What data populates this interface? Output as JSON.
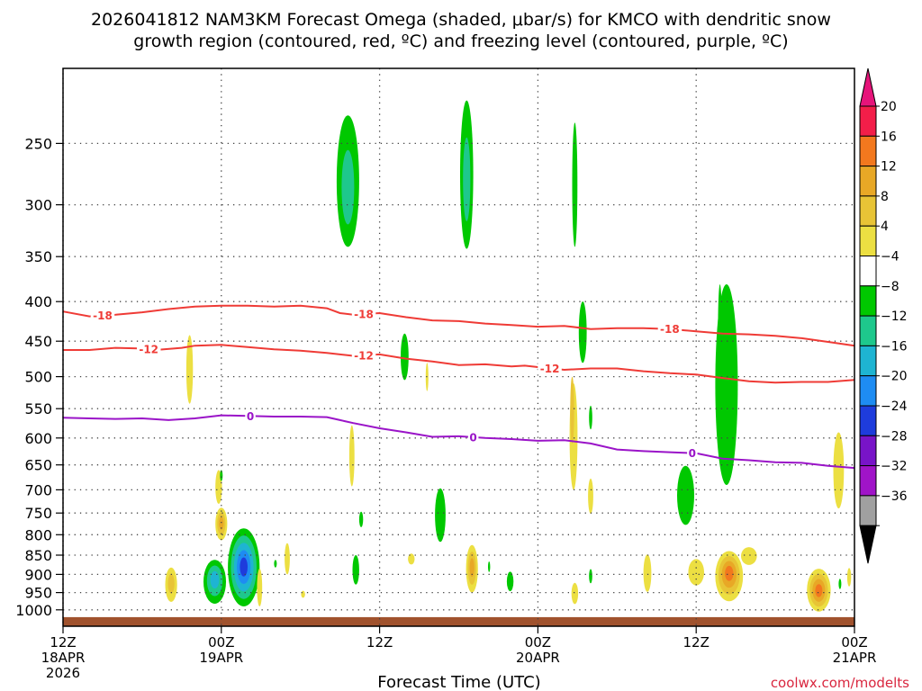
{
  "chart_data": {
    "type": "heatmap",
    "title_line1": "2026041812 NAM3KM Forecast Omega (shaded, μbar/s) for KMCO with dendritic snow",
    "title_line2": "growth region (contoured, red, ºC) and freezing level (contoured, purple, ºC)",
    "xlabel": "Forecast Time (UTC)",
    "credit": "coolwx.com/modelts",
    "x_range_hours": [
      0,
      60
    ],
    "x_ticks": [
      {
        "h": 0,
        "l1": "12Z",
        "l2": "18APR",
        "l3": "2026"
      },
      {
        "h": 12,
        "l1": "00Z",
        "l2": "19APR",
        "l3": ""
      },
      {
        "h": 24,
        "l1": "12Z",
        "l2": "",
        "l3": ""
      },
      {
        "h": 36,
        "l1": "00Z",
        "l2": "20APR",
        "l3": ""
      },
      {
        "h": 48,
        "l1": "12Z",
        "l2": "",
        "l3": ""
      },
      {
        "h": 60,
        "l1": "00Z",
        "l2": "21APR",
        "l3": ""
      }
    ],
    "y_scale": "log-pressure",
    "y_range_hpa": [
      1050,
      200
    ],
    "y_ticks": [
      250,
      300,
      350,
      400,
      450,
      500,
      550,
      600,
      650,
      700,
      750,
      800,
      850,
      900,
      950,
      1000
    ],
    "grid": true,
    "colorbar": {
      "labels": [
        "20",
        "16",
        "12",
        "8",
        "4",
        "−4",
        "−8",
        "−12",
        "−16",
        "−20",
        "−24",
        "−28",
        "−32",
        "−36"
      ],
      "colors": [
        "#f21e49",
        "#f2781e",
        "#e8a826",
        "#e8c436",
        "#ecdf42",
        "#ffffff",
        "#00c800",
        "#1ec88c",
        "#1eb4d2",
        "#1e8cf2",
        "#1e3cdc",
        "#7814c8",
        "#a014c8",
        "#a0a0a0"
      ],
      "top_arrow_color": "#e6147a",
      "bottom_arrow_color": "#000000"
    },
    "contour_series": [
      {
        "label": "-18",
        "color": "#ef3b36",
        "points": [
          [
            0,
            412
          ],
          [
            2,
            418
          ],
          [
            4,
            416
          ],
          [
            6,
            413
          ],
          [
            8,
            409
          ],
          [
            10,
            406
          ],
          [
            12,
            405
          ],
          [
            14,
            405
          ],
          [
            16,
            406
          ],
          [
            18,
            405
          ],
          [
            20,
            408
          ],
          [
            21,
            414
          ],
          [
            22,
            416
          ],
          [
            24,
            414
          ],
          [
            26,
            419
          ],
          [
            28,
            423
          ],
          [
            30,
            424
          ],
          [
            32,
            427
          ],
          [
            34,
            429
          ],
          [
            36,
            431
          ],
          [
            38,
            430
          ],
          [
            40,
            434
          ],
          [
            42,
            433
          ],
          [
            44,
            433
          ],
          [
            46,
            434
          ],
          [
            48,
            437
          ],
          [
            50,
            440
          ],
          [
            52,
            441
          ],
          [
            54,
            443
          ],
          [
            56,
            446
          ],
          [
            58,
            451
          ],
          [
            60,
            456
          ]
        ],
        "label_positions": [
          3,
          22.8,
          46
        ]
      },
      {
        "label": "-12",
        "color": "#ef3b36",
        "points": [
          [
            0,
            462
          ],
          [
            2,
            462
          ],
          [
            4,
            459
          ],
          [
            6,
            460
          ],
          [
            7,
            462
          ],
          [
            9,
            459
          ],
          [
            10,
            456
          ],
          [
            12,
            455
          ],
          [
            14,
            458
          ],
          [
            16,
            461
          ],
          [
            18,
            463
          ],
          [
            20,
            466
          ],
          [
            22,
            470
          ],
          [
            24,
            468
          ],
          [
            26,
            474
          ],
          [
            28,
            478
          ],
          [
            30,
            483
          ],
          [
            32,
            482
          ],
          [
            34,
            485
          ],
          [
            35,
            484
          ],
          [
            36,
            486
          ],
          [
            38,
            490
          ],
          [
            40,
            488
          ],
          [
            42,
            488
          ],
          [
            44,
            492
          ],
          [
            46,
            495
          ],
          [
            48,
            497
          ],
          [
            50,
            502
          ],
          [
            52,
            507
          ],
          [
            54,
            509
          ],
          [
            56,
            508
          ],
          [
            58,
            508
          ],
          [
            60,
            505
          ]
        ],
        "label_positions": [
          6.5,
          22.8,
          36.9
        ]
      },
      {
        "label": "0",
        "color": "#9a14c8",
        "points": [
          [
            0,
            565
          ],
          [
            2,
            566
          ],
          [
            4,
            567
          ],
          [
            6,
            566
          ],
          [
            8,
            569
          ],
          [
            10,
            566
          ],
          [
            12,
            561
          ],
          [
            14,
            562
          ],
          [
            16,
            563
          ],
          [
            18,
            563
          ],
          [
            20,
            564
          ],
          [
            21,
            569
          ],
          [
            22,
            574
          ],
          [
            24,
            583
          ],
          [
            26,
            590
          ],
          [
            28,
            598
          ],
          [
            30,
            597
          ],
          [
            32,
            600
          ],
          [
            34,
            602
          ],
          [
            36,
            605
          ],
          [
            38,
            604
          ],
          [
            40,
            610
          ],
          [
            42,
            621
          ],
          [
            44,
            624
          ],
          [
            46,
            626
          ],
          [
            48,
            628
          ],
          [
            50,
            638
          ],
          [
            52,
            641
          ],
          [
            54,
            645
          ],
          [
            56,
            646
          ],
          [
            58,
            652
          ],
          [
            60,
            656
          ]
        ],
        "label_positions": [
          14.2,
          31.1,
          47.7
        ]
      }
    ],
    "omega_blobs": [
      {
        "h": 9.6,
        "p": 472,
        "w": 0.5,
        "dp": [
          -30,
          70
        ],
        "layers": [
          "#ecdf42"
        ]
      },
      {
        "h": 11.8,
        "p": 690,
        "w": 0.5,
        "dp": [
          -30,
          40
        ],
        "layers": [
          "#ecdf42"
        ]
      },
      {
        "h": 12.0,
        "p": 773,
        "w": 0.9,
        "dp": [
          -35,
          40
        ],
        "layers": [
          "#ecdf42",
          "#e8c436",
          "#e8a826"
        ]
      },
      {
        "h": 8.2,
        "p": 922,
        "w": 0.9,
        "dp": [
          -40,
          55
        ],
        "layers": [
          "#ecdf42",
          "#e8c436"
        ]
      },
      {
        "h": 12.0,
        "p": 670,
        "w": 0.2,
        "dp": [
          -10,
          12
        ],
        "layers": [
          "#00c800"
        ]
      },
      {
        "h": 13.7,
        "p": 880,
        "w": 2.4,
        "dp": [
          -95,
          110
        ],
        "layers": [
          "#00c800",
          "#1ec88c",
          "#1eb4d2",
          "#1e8cf2",
          "#1e3cdc"
        ]
      },
      {
        "h": 11.5,
        "p": 912,
        "w": 1.7,
        "dp": [
          -50,
          70
        ],
        "layers": [
          "#00c800",
          "#1ec88c",
          "#1eb4d2"
        ]
      },
      {
        "h": 14.9,
        "p": 930,
        "w": 0.4,
        "dp": [
          -45,
          60
        ],
        "layers": [
          "#ecdf42"
        ]
      },
      {
        "h": 17.0,
        "p": 860,
        "w": 0.4,
        "dp": [
          -40,
          40
        ],
        "layers": [
          "#ecdf42"
        ]
      },
      {
        "h": 18.2,
        "p": 955,
        "w": 0.3,
        "dp": [
          -10,
          10
        ],
        "layers": [
          "#ecdf42"
        ]
      },
      {
        "h": 16.1,
        "p": 872,
        "w": 0.2,
        "dp": [
          -10,
          10
        ],
        "layers": [
          "#00c800"
        ]
      },
      {
        "h": 21.6,
        "p": 290,
        "w": 1.7,
        "dp": [
          -60,
          50
        ],
        "layers": [
          "#00c800",
          "#1ec88c"
        ]
      },
      {
        "h": 21.9,
        "p": 628,
        "w": 0.4,
        "dp": [
          -50,
          65
        ],
        "layers": [
          "#ecdf42"
        ]
      },
      {
        "h": 22.6,
        "p": 762,
        "w": 0.3,
        "dp": [
          -15,
          20
        ],
        "layers": [
          "#00c800"
        ]
      },
      {
        "h": 22.2,
        "p": 888,
        "w": 0.5,
        "dp": [
          -38,
          40
        ],
        "layers": [
          "#00c800"
        ]
      },
      {
        "h": 25.9,
        "p": 470,
        "w": 0.6,
        "dp": [
          -30,
          35
        ],
        "layers": [
          "#00c800"
        ]
      },
      {
        "h": 27.6,
        "p": 502,
        "w": 0.2,
        "dp": [
          -22,
          20
        ],
        "layers": [
          "#ecdf42"
        ]
      },
      {
        "h": 26.4,
        "p": 860,
        "w": 0.5,
        "dp": [
          -14,
          14
        ],
        "layers": [
          "#ecdf42"
        ]
      },
      {
        "h": 28.6,
        "p": 752,
        "w": 0.8,
        "dp": [
          -55,
          65
        ],
        "layers": [
          "#00c800"
        ]
      },
      {
        "h": 30.6,
        "p": 282,
        "w": 1.0,
        "dp": [
          -62,
          60
        ],
        "layers": [
          "#00c800",
          "#1ec88c"
        ]
      },
      {
        "h": 31.0,
        "p": 880,
        "w": 0.9,
        "dp": [
          -55,
          70
        ],
        "layers": [
          "#ecdf42",
          "#e8c436",
          "#e8a826"
        ]
      },
      {
        "h": 32.3,
        "p": 880,
        "w": 0.15,
        "dp": [
          -14,
          14
        ],
        "layers": [
          "#00c800"
        ]
      },
      {
        "h": 33.9,
        "p": 916,
        "w": 0.5,
        "dp": [
          -23,
          30
        ],
        "layers": [
          "#00c800"
        ]
      },
      {
        "h": 38.7,
        "p": 590,
        "w": 0.6,
        "dp": [
          -80,
          110
        ],
        "layers": [
          "#ecdf42"
        ]
      },
      {
        "h": 38.6,
        "p": 555,
        "w": 0.3,
        "dp": [
          -55,
          55
        ],
        "layers": [
          "#e8c436"
        ]
      },
      {
        "h": 38.8,
        "p": 948,
        "w": 0.5,
        "dp": [
          -25,
          35
        ],
        "layers": [
          "#ecdf42"
        ]
      },
      {
        "h": 38.8,
        "p": 290,
        "w": 0.4,
        "dp": [
          -55,
          50
        ],
        "layers": [
          "#00c800"
        ]
      },
      {
        "h": 39.4,
        "p": 435,
        "w": 0.6,
        "dp": [
          -35,
          45
        ],
        "layers": [
          "#00c800"
        ]
      },
      {
        "h": 40.0,
        "p": 565,
        "w": 0.25,
        "dp": [
          -20,
          20
        ],
        "layers": [
          "#00c800"
        ]
      },
      {
        "h": 40.0,
        "p": 712,
        "w": 0.4,
        "dp": [
          -35,
          40
        ],
        "layers": [
          "#ecdf42"
        ]
      },
      {
        "h": 40.0,
        "p": 904,
        "w": 0.25,
        "dp": [
          -18,
          20
        ],
        "layers": [
          "#00c800"
        ]
      },
      {
        "h": 44.3,
        "p": 888,
        "w": 0.6,
        "dp": [
          -40,
          60
        ],
        "layers": [
          "#ecdf42"
        ]
      },
      {
        "h": 47.2,
        "p": 712,
        "w": 1.3,
        "dp": [
          -60,
          65
        ],
        "layers": [
          "#00c800"
        ]
      },
      {
        "h": 48.0,
        "p": 890,
        "w": 1.2,
        "dp": [
          -30,
          40
        ],
        "layers": [
          "#ecdf42"
        ]
      },
      {
        "h": 50.5,
        "p": 895,
        "w": 2.1,
        "dp": [
          -55,
          80
        ],
        "layers": [
          "#ecdf42",
          "#e8c436",
          "#e8a826",
          "#f2781e"
        ]
      },
      {
        "h": 52.0,
        "p": 850,
        "w": 1.2,
        "dp": [
          -20,
          25
        ],
        "layers": [
          "#ecdf42"
        ]
      },
      {
        "h": 50.3,
        "p": 500,
        "w": 1.7,
        "dp": [
          -120,
          190
        ],
        "layers": [
          "#00c800"
        ]
      },
      {
        "h": 49.8,
        "p": 420,
        "w": 0.3,
        "dp": [
          -40,
          80
        ],
        "layers": [
          "#00c800"
        ]
      },
      {
        "h": 57.3,
        "p": 945,
        "w": 1.8,
        "dp": [
          -60,
          60
        ],
        "layers": [
          "#ecdf42",
          "#e8c436",
          "#e8a826",
          "#f2781e"
        ]
      },
      {
        "h": 58.9,
        "p": 926,
        "w": 0.2,
        "dp": [
          -14,
          14
        ],
        "layers": [
          "#00c800"
        ]
      },
      {
        "h": 59.6,
        "p": 908,
        "w": 0.3,
        "dp": [
          -25,
          25
        ],
        "layers": [
          "#ecdf42"
        ]
      },
      {
        "h": 58.8,
        "p": 650,
        "w": 0.8,
        "dp": [
          -60,
          90
        ],
        "layers": [
          "#ecdf42"
        ]
      }
    ],
    "ground": {
      "color": "#a0522d",
      "top_hpa": 1022
    }
  }
}
